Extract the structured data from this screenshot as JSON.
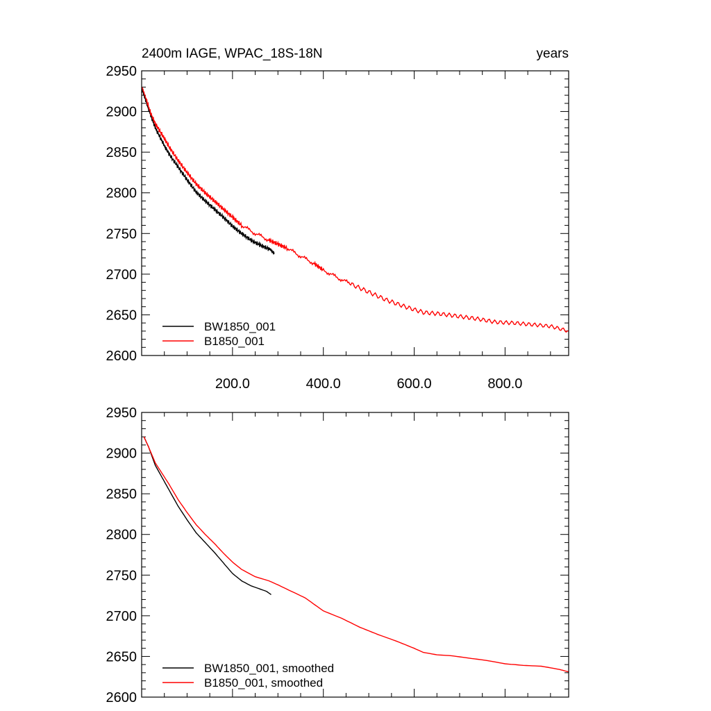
{
  "chart_data": [
    {
      "type": "line",
      "title": "2400m IAGE, WPAC_18S-18N",
      "units": "years",
      "xlim": [
        0,
        940
      ],
      "ylim": [
        2600,
        2950
      ],
      "x_ticks": [
        200,
        400,
        600,
        800
      ],
      "x_tick_labels": [
        "200.0",
        "400.0",
        "600.0",
        "800.0"
      ],
      "y_ticks": [
        2600,
        2650,
        2700,
        2750,
        2800,
        2850,
        2900,
        2950
      ],
      "y_tick_labels": [
        "2600",
        "2650",
        "2700",
        "2750",
        "2800",
        "2850",
        "2900",
        "2950"
      ],
      "legend_position": "bottom-left",
      "series": [
        {
          "name": "BW1850_001",
          "color": "#000000",
          "x": [
            1,
            10,
            20,
            30,
            40,
            50,
            60,
            80,
            100,
            120,
            140,
            160,
            180,
            200,
            220,
            240,
            260,
            280,
            292
          ],
          "y": [
            2928,
            2912,
            2895,
            2880,
            2869,
            2858,
            2848,
            2832,
            2816,
            2801,
            2790,
            2780,
            2770,
            2759,
            2750,
            2742,
            2736,
            2731,
            2725
          ]
        },
        {
          "name": "B1850_001",
          "color": "#ff0000",
          "x": [
            1,
            10,
            20,
            30,
            40,
            50,
            60,
            80,
            100,
            120,
            140,
            160,
            180,
            200,
            220,
            250,
            280,
            300,
            320,
            350,
            380,
            400,
            430,
            460,
            500,
            540,
            580,
            620,
            660,
            700,
            740,
            780,
            820,
            860,
            900,
            940
          ],
          "y": [
            2930,
            2915,
            2898,
            2885,
            2876,
            2867,
            2857,
            2840,
            2825,
            2811,
            2800,
            2790,
            2780,
            2770,
            2760,
            2750,
            2742,
            2737,
            2732,
            2722,
            2713,
            2705,
            2696,
            2688,
            2678,
            2668,
            2660,
            2653,
            2651,
            2648,
            2645,
            2641,
            2640,
            2638,
            2636,
            2630
          ]
        }
      ]
    },
    {
      "type": "line",
      "xlim": [
        0,
        940
      ],
      "ylim": [
        2600,
        2950
      ],
      "x_ticks": [
        200,
        400,
        600,
        800
      ],
      "y_ticks": [
        2600,
        2650,
        2700,
        2750,
        2800,
        2850,
        2900,
        2950
      ],
      "y_tick_labels": [
        "2600",
        "2650",
        "2700",
        "2750",
        "2800",
        "2850",
        "2900",
        "2950"
      ],
      "legend_position": "bottom-left",
      "series": [
        {
          "name": "BW1850_001, smoothed",
          "color": "#000000",
          "x": [
            5,
            15,
            30,
            45,
            60,
            80,
            100,
            120,
            140,
            160,
            180,
            200,
            220,
            240,
            260,
            275,
            285
          ],
          "y": [
            2920,
            2908,
            2885,
            2870,
            2855,
            2835,
            2818,
            2802,
            2790,
            2778,
            2765,
            2752,
            2743,
            2737,
            2733,
            2730,
            2726
          ]
        },
        {
          "name": "B1850_001, smoothed",
          "color": "#ff0000",
          "x": [
            5,
            15,
            30,
            45,
            60,
            80,
            100,
            120,
            140,
            160,
            180,
            200,
            220,
            250,
            280,
            300,
            330,
            360,
            400,
            440,
            480,
            520,
            560,
            600,
            620,
            650,
            680,
            720,
            760,
            800,
            840,
            880,
            920,
            940
          ],
          "y": [
            2920,
            2908,
            2888,
            2875,
            2862,
            2843,
            2827,
            2812,
            2800,
            2789,
            2777,
            2766,
            2757,
            2748,
            2743,
            2738,
            2730,
            2722,
            2706,
            2697,
            2686,
            2677,
            2669,
            2660,
            2655,
            2652,
            2651,
            2648,
            2645,
            2641,
            2639,
            2638,
            2634,
            2631
          ]
        }
      ]
    }
  ]
}
